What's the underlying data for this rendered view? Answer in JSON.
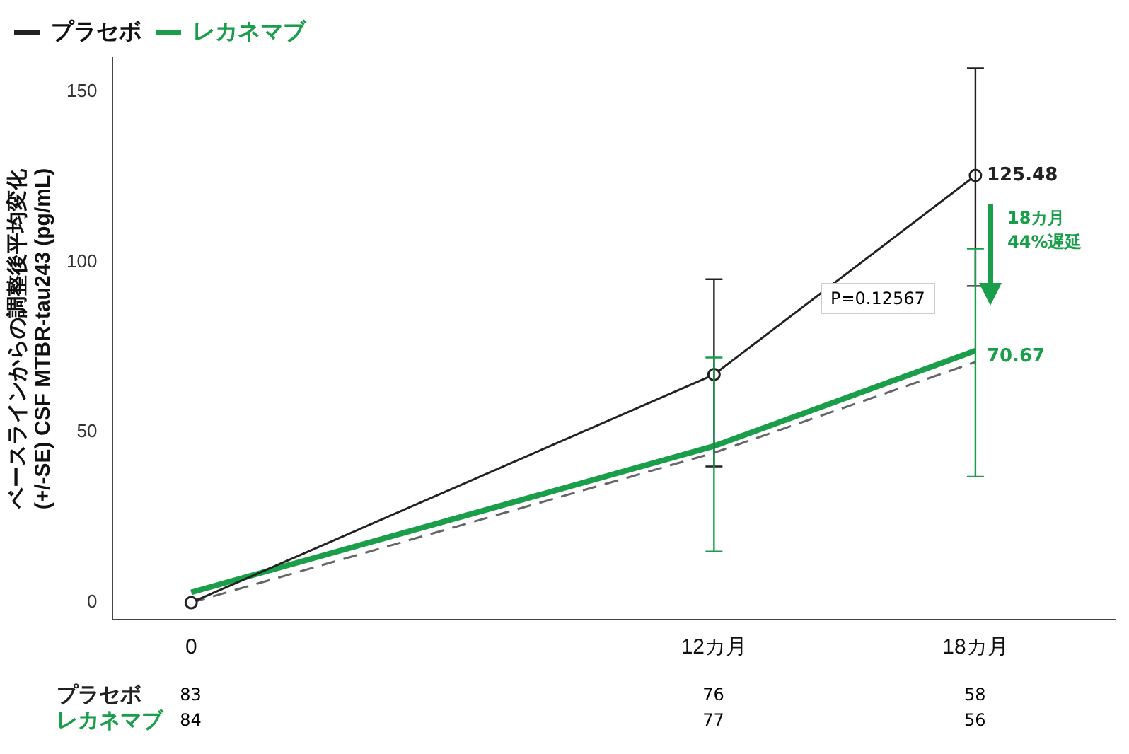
{
  "chart_data": {
    "type": "line",
    "ylabel": "ベースラインからの調整後平均変化\n(+/-SE) CSF MTBR-tau243 (pg/mL)",
    "x": [
      0,
      12,
      18
    ],
    "xlim": [
      -1.8,
      21.2
    ],
    "xticks": [
      {
        "value": 0,
        "label": "0"
      },
      {
        "value": 12,
        "label": "12カ月"
      },
      {
        "value": 18,
        "label": "18カ月"
      }
    ],
    "ylim": [
      -5,
      160
    ],
    "yticks": [
      0,
      50,
      100,
      150
    ],
    "series": [
      {
        "name": "プラセボ",
        "color": "#222222",
        "values": [
          0,
          67,
          125.48
        ],
        "errors": [
          null,
          [
            40,
            95
          ],
          [
            93,
            157
          ]
        ],
        "marker": "circle",
        "line_style": "solid"
      },
      {
        "name": "レカネマブ",
        "color": "#1a9e4a",
        "values": [
          3,
          46,
          74
        ],
        "errors": [
          null,
          [
            15,
            72
          ],
          [
            37,
            104
          ]
        ],
        "marker": "none",
        "line_style": "solid"
      },
      {
        "color": "#666666",
        "values": [
          0,
          44,
          70.67
        ],
        "marker": "none",
        "line_style": "dashed"
      }
    ],
    "annotations": [
      {
        "text": "125.48",
        "x": 18,
        "y": 125.48
      },
      {
        "text": "70.67",
        "x": 18,
        "y": 70.67
      },
      "P=0.12567",
      "18カ月\n44%遅延",
      "プラセボ",
      "83",
      "76",
      "58",
      "レカネマブ",
      "84",
      "77",
      "56"
    ],
    "legend": "top left",
    "grid": false
  }
}
